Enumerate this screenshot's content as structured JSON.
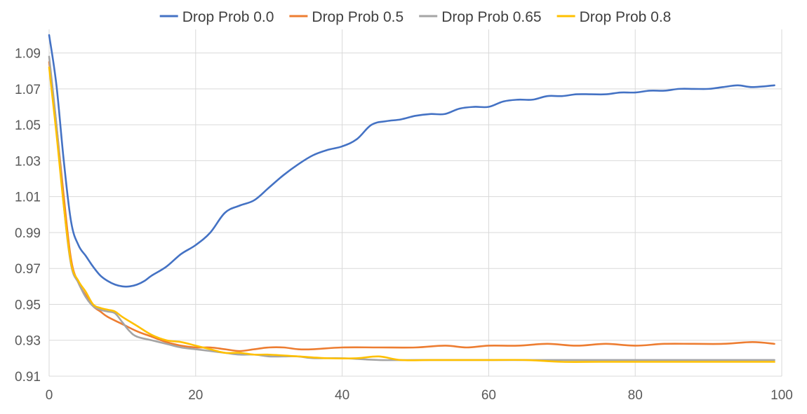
{
  "chart_data": {
    "type": "line",
    "title": "",
    "xlabel": "",
    "ylabel": "",
    "xlim": [
      0,
      100
    ],
    "ylim": [
      0.91,
      1.1
    ],
    "x_ticks": [
      0,
      20,
      40,
      60,
      80,
      100
    ],
    "x_tick_labels": [
      "0",
      "20",
      "40",
      "60",
      "80",
      "100"
    ],
    "y_ticks": [
      0.91,
      0.93,
      0.95,
      0.97,
      0.99,
      1.01,
      1.03,
      1.05,
      1.07,
      1.09
    ],
    "y_tick_labels": [
      "0.91",
      "0.93",
      "0.95",
      "0.97",
      "0.99",
      "1.01",
      "1.03",
      "1.05",
      "1.07",
      "1.09"
    ],
    "grid": true,
    "legend_position": "top",
    "series": [
      {
        "name": "Drop Prob 0.0",
        "color": "#4472C4",
        "points": [
          [
            0,
            1.1
          ],
          [
            1,
            1.072
          ],
          [
            2,
            1.03
          ],
          [
            3,
            0.996
          ],
          [
            4,
            0.983
          ],
          [
            5,
            0.977
          ],
          [
            6,
            0.971
          ],
          [
            7,
            0.966
          ],
          [
            8,
            0.963
          ],
          [
            9,
            0.961
          ],
          [
            10,
            0.96
          ],
          [
            11,
            0.96
          ],
          [
            12,
            0.961
          ],
          [
            13,
            0.963
          ],
          [
            14,
            0.966
          ],
          [
            16,
            0.971
          ],
          [
            18,
            0.978
          ],
          [
            20,
            0.983
          ],
          [
            22,
            0.99
          ],
          [
            24,
            1.001
          ],
          [
            26,
            1.005
          ],
          [
            28,
            1.008
          ],
          [
            30,
            1.015
          ],
          [
            32,
            1.022
          ],
          [
            34,
            1.028
          ],
          [
            36,
            1.033
          ],
          [
            38,
            1.036
          ],
          [
            40,
            1.038
          ],
          [
            42,
            1.042
          ],
          [
            44,
            1.05
          ],
          [
            46,
            1.052
          ],
          [
            48,
            1.053
          ],
          [
            50,
            1.055
          ],
          [
            52,
            1.056
          ],
          [
            54,
            1.056
          ],
          [
            56,
            1.059
          ],
          [
            58,
            1.06
          ],
          [
            60,
            1.06
          ],
          [
            62,
            1.063
          ],
          [
            64,
            1.064
          ],
          [
            66,
            1.064
          ],
          [
            68,
            1.066
          ],
          [
            70,
            1.066
          ],
          [
            72,
            1.067
          ],
          [
            74,
            1.067
          ],
          [
            76,
            1.067
          ],
          [
            78,
            1.068
          ],
          [
            80,
            1.068
          ],
          [
            82,
            1.069
          ],
          [
            84,
            1.069
          ],
          [
            86,
            1.07
          ],
          [
            88,
            1.07
          ],
          [
            90,
            1.07
          ],
          [
            92,
            1.071
          ],
          [
            94,
            1.072
          ],
          [
            96,
            1.071
          ],
          [
            99,
            1.072
          ]
        ]
      },
      {
        "name": "Drop Prob 0.5",
        "color": "#ED7D31",
        "points": [
          [
            0,
            1.085
          ],
          [
            1,
            1.05
          ],
          [
            2,
            1.01
          ],
          [
            3,
            0.975
          ],
          [
            4,
            0.962
          ],
          [
            5,
            0.955
          ],
          [
            6,
            0.949
          ],
          [
            7,
            0.946
          ],
          [
            8,
            0.943
          ],
          [
            10,
            0.939
          ],
          [
            12,
            0.935
          ],
          [
            14,
            0.932
          ],
          [
            16,
            0.929
          ],
          [
            18,
            0.927
          ],
          [
            20,
            0.926
          ],
          [
            22,
            0.926
          ],
          [
            24,
            0.925
          ],
          [
            26,
            0.924
          ],
          [
            28,
            0.925
          ],
          [
            30,
            0.926
          ],
          [
            32,
            0.926
          ],
          [
            34,
            0.925
          ],
          [
            36,
            0.925
          ],
          [
            40,
            0.926
          ],
          [
            45,
            0.926
          ],
          [
            50,
            0.926
          ],
          [
            54,
            0.927
          ],
          [
            57,
            0.926
          ],
          [
            60,
            0.927
          ],
          [
            64,
            0.927
          ],
          [
            68,
            0.928
          ],
          [
            72,
            0.927
          ],
          [
            76,
            0.928
          ],
          [
            80,
            0.927
          ],
          [
            84,
            0.928
          ],
          [
            88,
            0.928
          ],
          [
            92,
            0.928
          ],
          [
            96,
            0.929
          ],
          [
            99,
            0.928
          ]
        ]
      },
      {
        "name": "Drop Prob 0.65",
        "color": "#A5A5A5",
        "points": [
          [
            0,
            1.088
          ],
          [
            1,
            1.05
          ],
          [
            2,
            1.005
          ],
          [
            3,
            0.972
          ],
          [
            4,
            0.962
          ],
          [
            5,
            0.954
          ],
          [
            6,
            0.949
          ],
          [
            7,
            0.947
          ],
          [
            8,
            0.946
          ],
          [
            9,
            0.945
          ],
          [
            10,
            0.94
          ],
          [
            11,
            0.935
          ],
          [
            12,
            0.932
          ],
          [
            14,
            0.93
          ],
          [
            16,
            0.928
          ],
          [
            18,
            0.926
          ],
          [
            20,
            0.925
          ],
          [
            22,
            0.924
          ],
          [
            24,
            0.923
          ],
          [
            26,
            0.922
          ],
          [
            28,
            0.922
          ],
          [
            30,
            0.921
          ],
          [
            32,
            0.921
          ],
          [
            34,
            0.921
          ],
          [
            36,
            0.92
          ],
          [
            40,
            0.92
          ],
          [
            45,
            0.919
          ],
          [
            50,
            0.919
          ],
          [
            55,
            0.919
          ],
          [
            60,
            0.919
          ],
          [
            65,
            0.919
          ],
          [
            70,
            0.919
          ],
          [
            75,
            0.919
          ],
          [
            80,
            0.919
          ],
          [
            85,
            0.919
          ],
          [
            90,
            0.919
          ],
          [
            95,
            0.919
          ],
          [
            99,
            0.919
          ]
        ]
      },
      {
        "name": "Drop Prob 0.8",
        "color": "#FFC000",
        "points": [
          [
            0,
            1.082
          ],
          [
            1,
            1.045
          ],
          [
            2,
            1.005
          ],
          [
            3,
            0.973
          ],
          [
            4,
            0.963
          ],
          [
            5,
            0.957
          ],
          [
            6,
            0.95
          ],
          [
            7,
            0.948
          ],
          [
            8,
            0.947
          ],
          [
            9,
            0.946
          ],
          [
            10,
            0.943
          ],
          [
            12,
            0.938
          ],
          [
            14,
            0.933
          ],
          [
            16,
            0.93
          ],
          [
            18,
            0.929
          ],
          [
            20,
            0.927
          ],
          [
            22,
            0.925
          ],
          [
            24,
            0.923
          ],
          [
            26,
            0.923
          ],
          [
            28,
            0.922
          ],
          [
            30,
            0.922
          ],
          [
            34,
            0.921
          ],
          [
            38,
            0.92
          ],
          [
            42,
            0.92
          ],
          [
            45,
            0.921
          ],
          [
            48,
            0.919
          ],
          [
            52,
            0.919
          ],
          [
            56,
            0.919
          ],
          [
            60,
            0.919
          ],
          [
            65,
            0.919
          ],
          [
            70,
            0.918
          ],
          [
            75,
            0.918
          ],
          [
            80,
            0.918
          ],
          [
            85,
            0.918
          ],
          [
            90,
            0.918
          ],
          [
            95,
            0.918
          ],
          [
            99,
            0.918
          ]
        ]
      }
    ]
  }
}
